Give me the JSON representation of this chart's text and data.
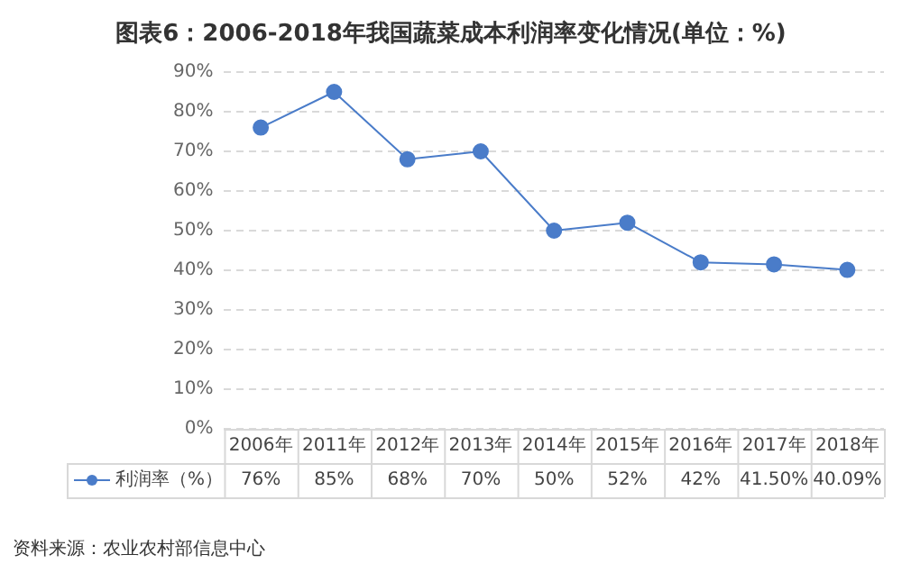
{
  "chart_data": {
    "type": "line",
    "title": "图表6：2006-2018年我国蔬菜成本利润率变化情况(单位：%)",
    "categories": [
      "2006年",
      "2011年",
      "2012年",
      "2013年",
      "2014年",
      "2015年",
      "2016年",
      "2017年",
      "2018年"
    ],
    "series": [
      {
        "name": "利润率（%）",
        "color": "#4a7cc9",
        "values": [
          76,
          85,
          68,
          70,
          50,
          52,
          42,
          41.5,
          40.09
        ],
        "value_labels": [
          "76%",
          "85%",
          "68%",
          "70%",
          "50%",
          "52%",
          "42%",
          "41.50%",
          "40.09%"
        ]
      }
    ],
    "ylim": [
      0,
      90
    ],
    "yticks": [
      {
        "value": 0,
        "label": "0%"
      },
      {
        "value": 10,
        "label": "10%"
      },
      {
        "value": 20,
        "label": "20%"
      },
      {
        "value": 30,
        "label": "30%"
      },
      {
        "value": 40,
        "label": "40%"
      },
      {
        "value": 50,
        "label": "50%"
      },
      {
        "value": 60,
        "label": "60%"
      },
      {
        "value": 70,
        "label": "70%"
      },
      {
        "value": 80,
        "label": "80%"
      },
      {
        "value": 90,
        "label": "90%"
      }
    ],
    "grid": "y",
    "marker": "circle",
    "line_style": "solid",
    "legend": "bottom left",
    "annotations": [
      "资料来源：农业农村部信息中心"
    ]
  }
}
